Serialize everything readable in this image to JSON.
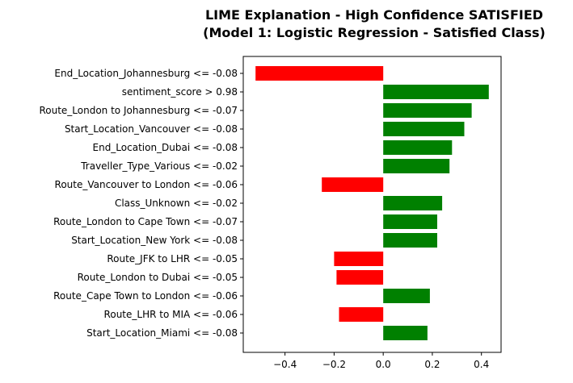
{
  "chart_data": {
    "type": "bar",
    "orientation": "horizontal",
    "title_lines": [
      "LIME Explanation - High Confidence SATISFIED",
      "(Model 1: Logistic Regression - Satisfied Class)"
    ],
    "xlabel": "",
    "ylabel": "",
    "xlim": [
      -0.57,
      0.48
    ],
    "xticks": [
      -0.4,
      -0.2,
      0.0,
      0.2,
      0.4
    ],
    "xtick_labels": [
      "−0.4",
      "−0.2",
      "0.0",
      "0.2",
      "0.4"
    ],
    "grid": false,
    "legend": null,
    "positive_color": "#008000",
    "negative_color": "#ff0000",
    "categories": [
      "End_Location_Johannesburg <= -0.08",
      "sentiment_score > 0.98",
      "Route_London to Johannesburg <= -0.07",
      "Start_Location_Vancouver <= -0.08",
      "End_Location_Dubai <= -0.08",
      "Traveller_Type_Various <= -0.02",
      "Route_Vancouver to London <= -0.06",
      "Class_Unknown <= -0.02",
      "Route_London to Cape Town <= -0.07",
      "Start_Location_New York <= -0.08",
      "Route_JFK to LHR <= -0.05",
      "Route_London to Dubai <= -0.05",
      "Route_Cape Town to London <= -0.06",
      "Route_LHR to MIA <= -0.06",
      "Start_Location_Miami <= -0.08"
    ],
    "values": [
      -0.52,
      0.43,
      0.36,
      0.33,
      0.28,
      0.27,
      -0.25,
      0.24,
      0.22,
      0.22,
      -0.2,
      -0.19,
      0.19,
      -0.18,
      0.18
    ]
  }
}
